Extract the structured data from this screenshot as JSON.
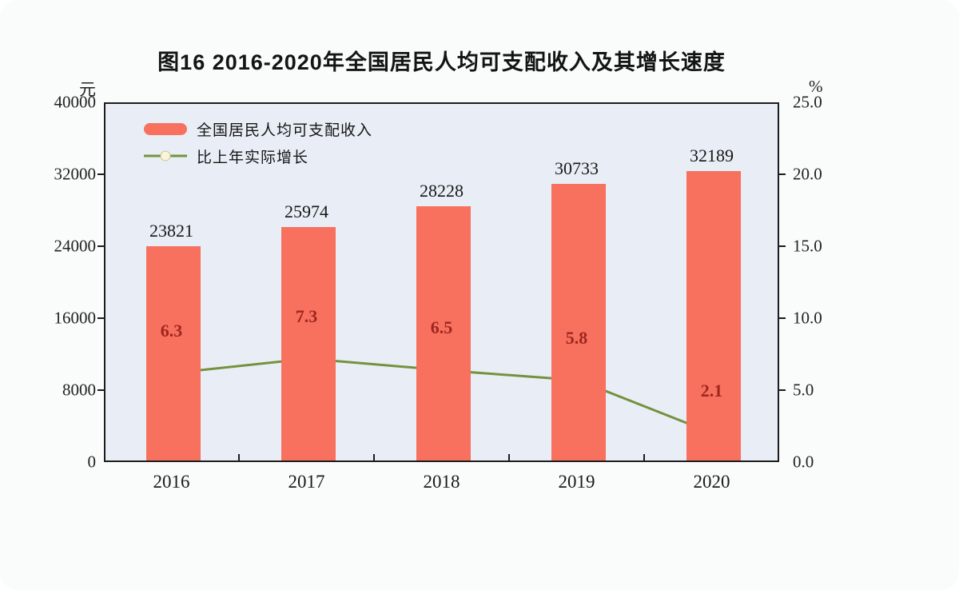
{
  "title": "图16  2016-2020年全国居民人均可支配收入及其增长速度",
  "left_axis": {
    "unit": "元",
    "ticks": [
      "40000",
      "32000",
      "24000",
      "16000",
      "8000",
      "0"
    ]
  },
  "right_axis": {
    "unit": "%",
    "ticks": [
      "25.0",
      "20.0",
      "15.0",
      "10.0",
      "5.0",
      "0.0"
    ]
  },
  "legend": [
    {
      "label": "全国居民人均可支配收入",
      "type": "bar"
    },
    {
      "label": "比上年实际增长",
      "type": "line"
    }
  ],
  "chart_data": {
    "type": "bar",
    "categories": [
      "2016",
      "2017",
      "2018",
      "2019",
      "2020"
    ],
    "series": [
      {
        "name": "全国居民人均可支配收入",
        "type": "bar",
        "axis": "left",
        "values": [
          23821,
          25974,
          28228,
          30733,
          32189
        ]
      },
      {
        "name": "比上年实际增长",
        "type": "line",
        "axis": "right",
        "values": [
          6.3,
          7.3,
          6.5,
          5.8,
          2.1
        ]
      }
    ],
    "title": "图16  2016-2020年全国居民人均可支配收入及其增长速度",
    "xlabel": "",
    "ylabel_left": "元",
    "ylabel_right": "%",
    "left_ylim": [
      0,
      40000
    ],
    "right_ylim": [
      0,
      25
    ],
    "grid": false,
    "legend_position": "top-left-inside"
  },
  "colors": {
    "bar": "#f8705e",
    "line": "#74923e",
    "marker_fill": "#fbf4dd",
    "marker_stroke": "#cfc68e",
    "growth_label": "#9e271e",
    "plot_bg": "#e9eef6",
    "border": "#1c1c1c"
  }
}
